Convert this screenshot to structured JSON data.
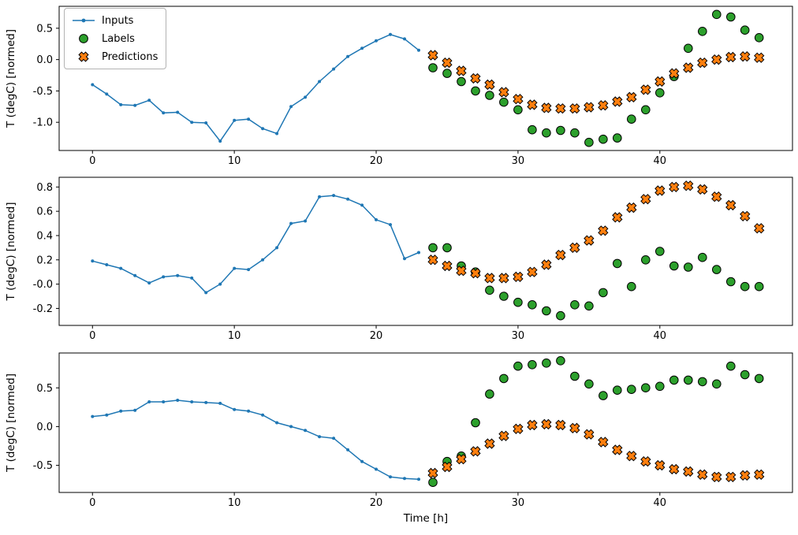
{
  "figure": {
    "xlabel": "Time [h]",
    "ylabel": "T (degC) [normed]",
    "background": "#ffffff",
    "legend": [
      {
        "label": "Inputs",
        "marker": "line-dot",
        "color": "#1f77b4"
      },
      {
        "label": "Labels",
        "marker": "circle",
        "color": "#2ca02c"
      },
      {
        "label": "Predictions",
        "marker": "X",
        "color": "#ff7f0e"
      }
    ]
  },
  "chart_data": [
    {
      "type": "line",
      "ylabel": "T (degC) [normed]",
      "xlim": [
        -2.35,
        49.35
      ],
      "ylim": [
        -1.45,
        0.85
      ],
      "xtick_values": [
        0,
        10,
        20,
        30,
        40
      ],
      "xtick_labels": [
        "0",
        "10",
        "20",
        "30",
        "40"
      ],
      "ytick_values": [
        0.5,
        0.0,
        -0.5,
        -1.0
      ],
      "ytick_labels": [
        "0.5",
        "0.0",
        "-0.5",
        "-1.0"
      ],
      "series": [
        {
          "name": "Inputs",
          "marker": "line-dot",
          "color": "#1f77b4",
          "x": [
            0,
            1,
            2,
            3,
            4,
            5,
            6,
            7,
            8,
            9,
            10,
            11,
            12,
            13,
            14,
            15,
            16,
            17,
            18,
            19,
            20,
            21,
            22,
            23
          ],
          "y": [
            -0.4,
            -0.55,
            -0.72,
            -0.73,
            -0.65,
            -0.85,
            -0.84,
            -1.0,
            -1.01,
            -1.3,
            -0.97,
            -0.95,
            -1.1,
            -1.18,
            -0.75,
            -0.6,
            -0.35,
            -0.15,
            0.05,
            0.18,
            0.3,
            0.4,
            0.33,
            0.15
          ]
        },
        {
          "name": "Labels",
          "marker": "circle",
          "color": "#2ca02c",
          "x": [
            24,
            25,
            26,
            27,
            28,
            29,
            30,
            31,
            32,
            33,
            34,
            35,
            36,
            37,
            38,
            39,
            40,
            41,
            42,
            43,
            44,
            45,
            46,
            47
          ],
          "y": [
            -0.13,
            -0.22,
            -0.35,
            -0.5,
            -0.57,
            -0.68,
            -0.8,
            -1.12,
            -1.17,
            -1.13,
            -1.17,
            -1.32,
            -1.27,
            -1.25,
            -0.95,
            -0.8,
            -0.53,
            -0.27,
            0.18,
            0.45,
            0.72,
            0.68,
            0.47,
            0.35
          ]
        },
        {
          "name": "Predictions",
          "marker": "X",
          "color": "#ff7f0e",
          "x": [
            24,
            25,
            26,
            27,
            28,
            29,
            30,
            31,
            32,
            33,
            34,
            35,
            36,
            37,
            38,
            39,
            40,
            41,
            42,
            43,
            44,
            45,
            46,
            47
          ],
          "y": [
            0.07,
            -0.05,
            -0.18,
            -0.3,
            -0.4,
            -0.52,
            -0.63,
            -0.72,
            -0.77,
            -0.78,
            -0.78,
            -0.76,
            -0.73,
            -0.67,
            -0.6,
            -0.48,
            -0.35,
            -0.22,
            -0.13,
            -0.05,
            0.0,
            0.04,
            0.05,
            0.03
          ]
        }
      ]
    },
    {
      "type": "line",
      "ylabel": "T (degC) [normed]",
      "xlim": [
        -2.35,
        49.35
      ],
      "ylim": [
        -0.34,
        0.88
      ],
      "xtick_values": [
        0,
        10,
        20,
        30,
        40
      ],
      "xtick_labels": [
        "0",
        "10",
        "20",
        "30",
        "40"
      ],
      "ytick_values": [
        0.8,
        0.6,
        0.4,
        0.2,
        0.0,
        -0.2
      ],
      "ytick_labels": [
        "0.8",
        "0.6",
        "0.4",
        "0.2",
        "-0.0",
        "-0.2"
      ],
      "series": [
        {
          "name": "Inputs",
          "marker": "line-dot",
          "color": "#1f77b4",
          "x": [
            0,
            1,
            2,
            3,
            4,
            5,
            6,
            7,
            8,
            9,
            10,
            11,
            12,
            13,
            14,
            15,
            16,
            17,
            18,
            19,
            20,
            21,
            22,
            23
          ],
          "y": [
            0.19,
            0.16,
            0.13,
            0.07,
            0.01,
            0.06,
            0.07,
            0.05,
            -0.07,
            0.0,
            0.13,
            0.12,
            0.2,
            0.3,
            0.5,
            0.52,
            0.72,
            0.73,
            0.7,
            0.65,
            0.53,
            0.49,
            0.21,
            0.26
          ]
        },
        {
          "name": "Labels",
          "marker": "circle",
          "color": "#2ca02c",
          "x": [
            24,
            25,
            26,
            27,
            28,
            29,
            30,
            31,
            32,
            33,
            34,
            35,
            36,
            37,
            38,
            39,
            40,
            41,
            42,
            43,
            44,
            45,
            46,
            47
          ],
          "y": [
            0.3,
            0.3,
            0.15,
            0.1,
            -0.05,
            -0.1,
            -0.15,
            -0.17,
            -0.22,
            -0.26,
            -0.17,
            -0.18,
            -0.07,
            0.17,
            -0.02,
            0.2,
            0.27,
            0.15,
            0.14,
            0.22,
            0.12,
            0.02,
            -0.02,
            -0.02
          ]
        },
        {
          "name": "Predictions",
          "marker": "X",
          "color": "#ff7f0e",
          "x": [
            24,
            25,
            26,
            27,
            28,
            29,
            30,
            31,
            32,
            33,
            34,
            35,
            36,
            37,
            38,
            39,
            40,
            41,
            42,
            43,
            44,
            45,
            46,
            47
          ],
          "y": [
            0.2,
            0.15,
            0.11,
            0.09,
            0.05,
            0.05,
            0.06,
            0.1,
            0.16,
            0.24,
            0.3,
            0.36,
            0.44,
            0.55,
            0.63,
            0.7,
            0.77,
            0.8,
            0.81,
            0.78,
            0.72,
            0.65,
            0.56,
            0.46
          ]
        }
      ]
    },
    {
      "type": "line",
      "ylabel": "T (degC) [normed]",
      "xlabel": "Time [h]",
      "xlim": [
        -2.35,
        49.35
      ],
      "ylim": [
        -0.85,
        0.95
      ],
      "xtick_values": [
        0,
        10,
        20,
        30,
        40
      ],
      "xtick_labels": [
        "0",
        "10",
        "20",
        "30",
        "40"
      ],
      "ytick_values": [
        0.5,
        0.0,
        -0.5
      ],
      "ytick_labels": [
        "0.5",
        "0.0",
        "-0.5"
      ],
      "series": [
        {
          "name": "Inputs",
          "marker": "line-dot",
          "color": "#1f77b4",
          "x": [
            0,
            1,
            2,
            3,
            4,
            5,
            6,
            7,
            8,
            9,
            10,
            11,
            12,
            13,
            14,
            15,
            16,
            17,
            18,
            19,
            20,
            21,
            22,
            23
          ],
          "y": [
            0.13,
            0.15,
            0.2,
            0.21,
            0.32,
            0.32,
            0.34,
            0.32,
            0.31,
            0.3,
            0.22,
            0.2,
            0.15,
            0.05,
            0.0,
            -0.05,
            -0.13,
            -0.15,
            -0.3,
            -0.45,
            -0.55,
            -0.65,
            -0.67,
            -0.68
          ]
        },
        {
          "name": "Labels",
          "marker": "circle",
          "color": "#2ca02c",
          "x": [
            24,
            25,
            26,
            27,
            28,
            29,
            30,
            31,
            32,
            33,
            34,
            35,
            36,
            37,
            38,
            39,
            40,
            41,
            42,
            43,
            44,
            45,
            46,
            47
          ],
          "y": [
            -0.72,
            -0.45,
            -0.38,
            0.05,
            0.42,
            0.62,
            0.78,
            0.8,
            0.82,
            0.85,
            0.65,
            0.55,
            0.4,
            0.47,
            0.48,
            0.5,
            0.52,
            0.6,
            0.6,
            0.58,
            0.55,
            0.78,
            0.67,
            0.62
          ]
        },
        {
          "name": "Predictions",
          "marker": "X",
          "color": "#ff7f0e",
          "x": [
            24,
            25,
            26,
            27,
            28,
            29,
            30,
            31,
            32,
            33,
            34,
            35,
            36,
            37,
            38,
            39,
            40,
            41,
            42,
            43,
            44,
            45,
            46,
            47
          ],
          "y": [
            -0.6,
            -0.52,
            -0.42,
            -0.32,
            -0.22,
            -0.12,
            -0.03,
            0.02,
            0.03,
            0.02,
            -0.02,
            -0.1,
            -0.2,
            -0.3,
            -0.38,
            -0.45,
            -0.5,
            -0.55,
            -0.58,
            -0.62,
            -0.65,
            -0.65,
            -0.63,
            -0.62
          ]
        }
      ]
    }
  ]
}
